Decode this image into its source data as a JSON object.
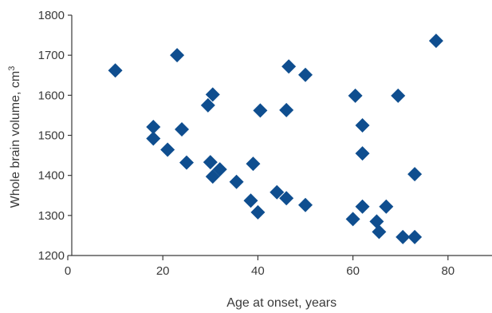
{
  "chart_data": {
    "type": "scatter",
    "title": "",
    "xlabel": "Age at onset, years",
    "ylabel": "Whole brain volume, cm",
    "ylabel_superscript": "3",
    "xlim": [
      0,
      90
    ],
    "ylim": [
      1200,
      1800
    ],
    "x_ticks": [
      0,
      20,
      40,
      60,
      80
    ],
    "y_ticks": [
      1200,
      1300,
      1400,
      1500,
      1600,
      1700,
      1800
    ],
    "x_tick_labels": [
      "0",
      "20",
      "40",
      "60",
      "80"
    ],
    "y_tick_labels": [
      "1200",
      "1300",
      "1400",
      "1500",
      "1600",
      "1700",
      "1800"
    ],
    "grid": false,
    "legend": "none",
    "marker": "diamond",
    "marker_color": "#0f4e8f",
    "axis_color": "#3a3a3a",
    "points": [
      {
        "x": 10,
        "y": 1662
      },
      {
        "x": 18,
        "y": 1521
      },
      {
        "x": 18,
        "y": 1492
      },
      {
        "x": 21,
        "y": 1464
      },
      {
        "x": 23,
        "y": 1700
      },
      {
        "x": 24,
        "y": 1515
      },
      {
        "x": 25,
        "y": 1432
      },
      {
        "x": 29.5,
        "y": 1575
      },
      {
        "x": 30.5,
        "y": 1602
      },
      {
        "x": 30,
        "y": 1433
      },
      {
        "x": 30.5,
        "y": 1397
      },
      {
        "x": 32,
        "y": 1415
      },
      {
        "x": 35.5,
        "y": 1384
      },
      {
        "x": 38.5,
        "y": 1337
      },
      {
        "x": 39,
        "y": 1429
      },
      {
        "x": 40,
        "y": 1308
      },
      {
        "x": 40.5,
        "y": 1562
      },
      {
        "x": 44,
        "y": 1358
      },
      {
        "x": 46,
        "y": 1343
      },
      {
        "x": 46,
        "y": 1563
      },
      {
        "x": 46.5,
        "y": 1672
      },
      {
        "x": 50,
        "y": 1651
      },
      {
        "x": 50,
        "y": 1326
      },
      {
        "x": 60,
        "y": 1291
      },
      {
        "x": 60.5,
        "y": 1599
      },
      {
        "x": 62,
        "y": 1525
      },
      {
        "x": 62,
        "y": 1455
      },
      {
        "x": 62,
        "y": 1322
      },
      {
        "x": 65,
        "y": 1285
      },
      {
        "x": 65.5,
        "y": 1259
      },
      {
        "x": 67,
        "y": 1322
      },
      {
        "x": 69.5,
        "y": 1599
      },
      {
        "x": 70.5,
        "y": 1246
      },
      {
        "x": 73,
        "y": 1403
      },
      {
        "x": 73,
        "y": 1246
      },
      {
        "x": 77.5,
        "y": 1736
      }
    ]
  }
}
